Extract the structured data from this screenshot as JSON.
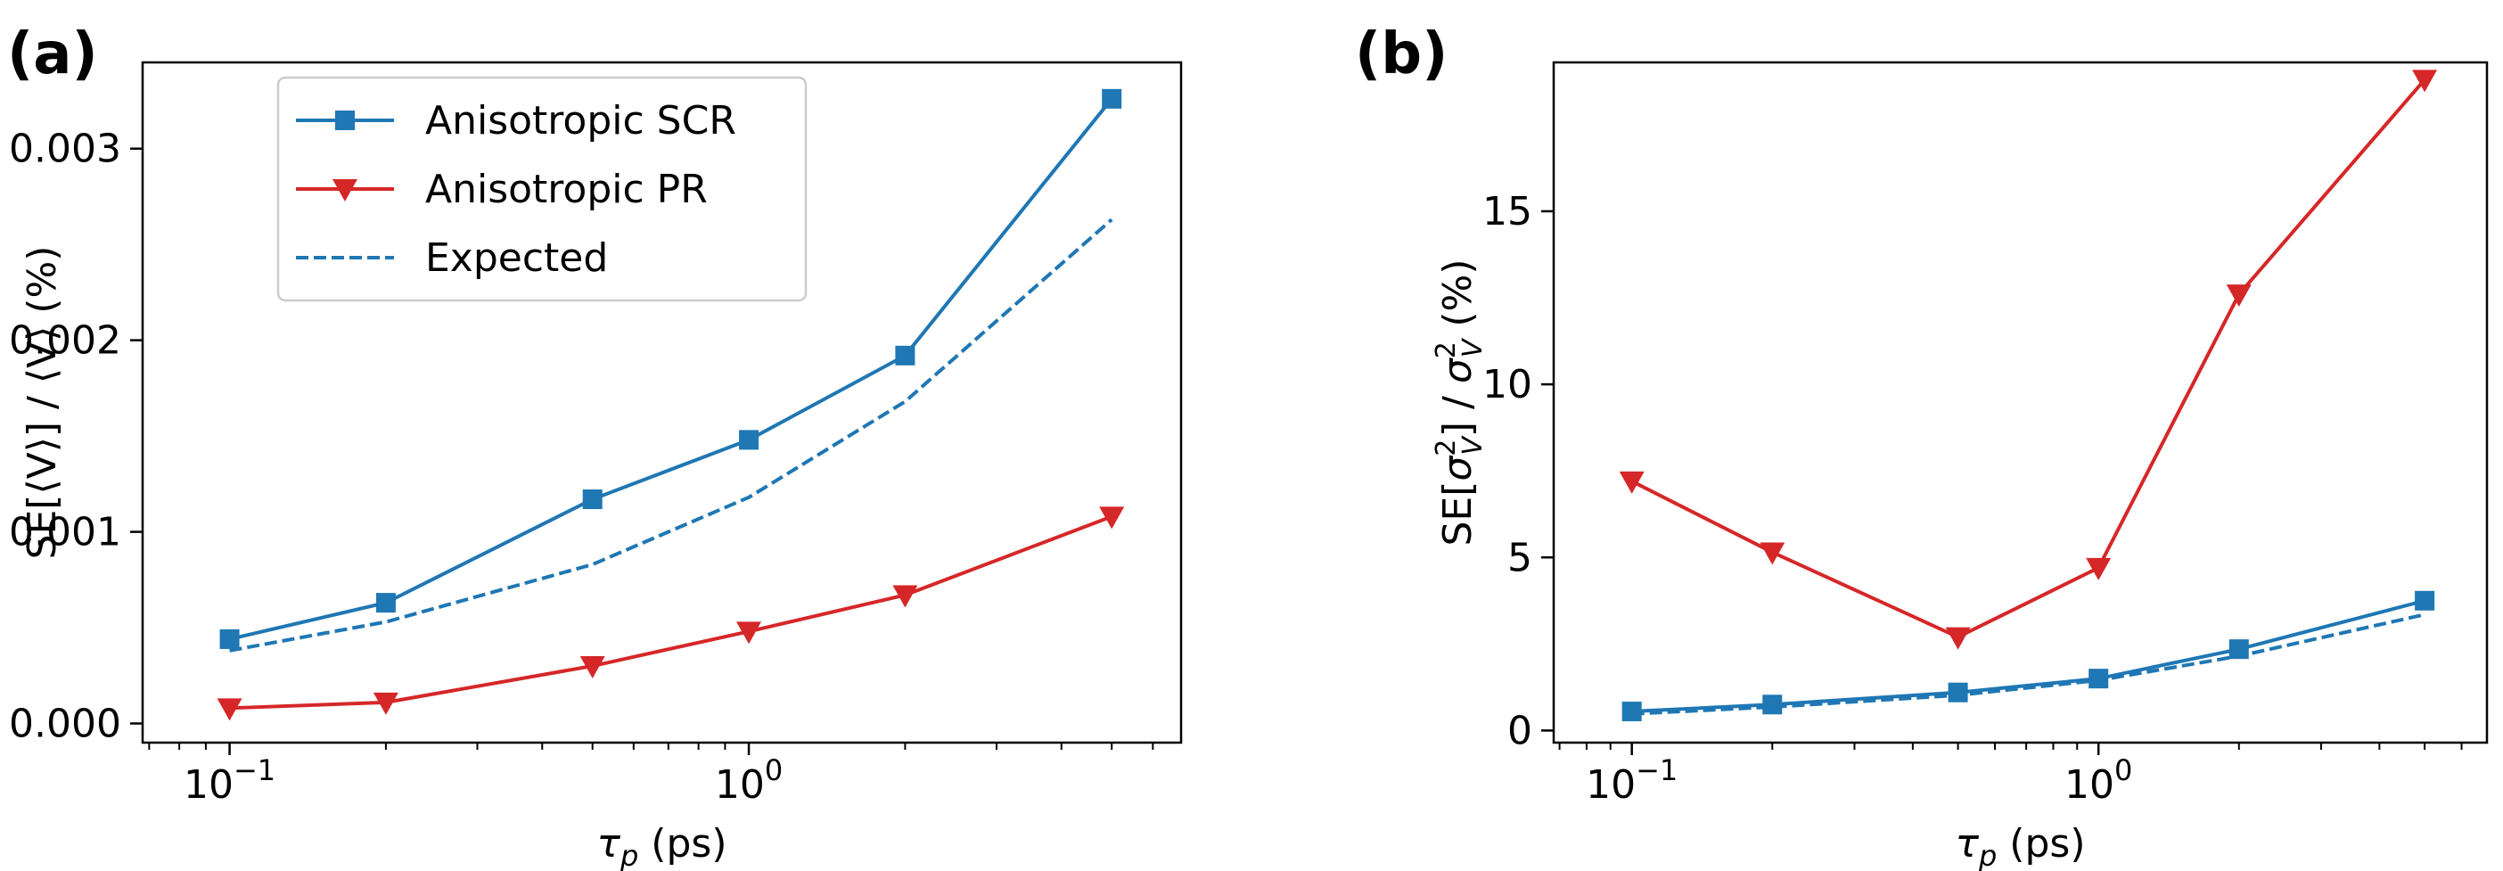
{
  "chart_data": [
    {
      "panel_label": "(a)",
      "type": "line",
      "xscale": "log",
      "xlabel_symbol": "τ",
      "xlabel_sub": "p",
      "xlabel_unit": " (ps)",
      "ylabel": "SE[⟨V⟩] / ⟨V⟩   (%)",
      "xlim": [
        0.068,
        6.8
      ],
      "ylim": [
        -0.0001,
        0.00345
      ],
      "xticks": [
        {
          "value": 0.1,
          "base": "10",
          "exp": "−1"
        },
        {
          "value": 1,
          "base": "10",
          "exp": "0"
        }
      ],
      "yticks": [
        {
          "value": 0.0,
          "label": "0.000"
        },
        {
          "value": 0.001,
          "label": "0.001"
        },
        {
          "value": 0.002,
          "label": "0.002"
        },
        {
          "value": 0.003,
          "label": "0.003"
        }
      ],
      "x": [
        0.1,
        0.2,
        0.5,
        1.0,
        2.0,
        5.0
      ],
      "series": [
        {
          "name": "Anisotropic SCR",
          "color": "#1f77b4",
          "style": "solid",
          "marker": "square",
          "values": [
            0.00044,
            0.00063,
            0.00117,
            0.00148,
            0.00192,
            0.00326
          ]
        },
        {
          "name": "Anisotropic PR",
          "color": "#d62728",
          "style": "solid",
          "marker": "triangle-down",
          "values": [
            8e-05,
            0.00011,
            0.0003,
            0.00048,
            0.00067,
            0.00108
          ]
        },
        {
          "name": "Expected",
          "color": "#1f77b4",
          "style": "dashed",
          "marker": "none",
          "values": [
            0.00038,
            0.00053,
            0.00083,
            0.00118,
            0.00168,
            0.00263
          ]
        }
      ],
      "legend": {
        "location": "top-left",
        "entries": [
          "Anisotropic SCR",
          "Anisotropic PR",
          "Expected"
        ]
      }
    },
    {
      "panel_label": "(b)",
      "type": "line",
      "xscale": "log",
      "xlabel_symbol": "τ",
      "xlabel_sub": "p",
      "xlabel_unit": " (ps)",
      "ylabel": "SE[σ²_V] / σ²_V   (%)",
      "ylabel_parts": {
        "pre": "SE[",
        "sym": "σ",
        "sup": "2",
        "sub": "V",
        "mid": "] / ",
        "post": "   (%)"
      },
      "xlim": [
        0.068,
        6.8
      ],
      "ylim": [
        -0.35,
        19.3
      ],
      "xticks": [
        {
          "value": 0.1,
          "base": "10",
          "exp": "−1"
        },
        {
          "value": 1,
          "base": "10",
          "exp": "0"
        }
      ],
      "yticks": [
        {
          "value": 0,
          "label": "0"
        },
        {
          "value": 5,
          "label": "5"
        },
        {
          "value": 10,
          "label": "10"
        },
        {
          "value": 15,
          "label": "15"
        }
      ],
      "x": [
        0.1,
        0.2,
        0.5,
        1.0,
        2.0,
        5.0
      ],
      "series": [
        {
          "name": "Anisotropic SCR",
          "color": "#1f77b4",
          "style": "solid",
          "marker": "square",
          "values": [
            0.55,
            0.75,
            1.1,
            1.5,
            2.35,
            3.75
          ]
        },
        {
          "name": "Anisotropic PR",
          "color": "#d62728",
          "style": "solid",
          "marker": "triangle-down",
          "values": [
            7.2,
            5.15,
            2.7,
            4.7,
            12.6,
            18.8
          ]
        },
        {
          "name": "Expected",
          "color": "#1f77b4",
          "style": "dashed",
          "marker": "none",
          "values": [
            0.48,
            0.68,
            1.02,
            1.45,
            2.15,
            3.35
          ]
        }
      ]
    }
  ]
}
